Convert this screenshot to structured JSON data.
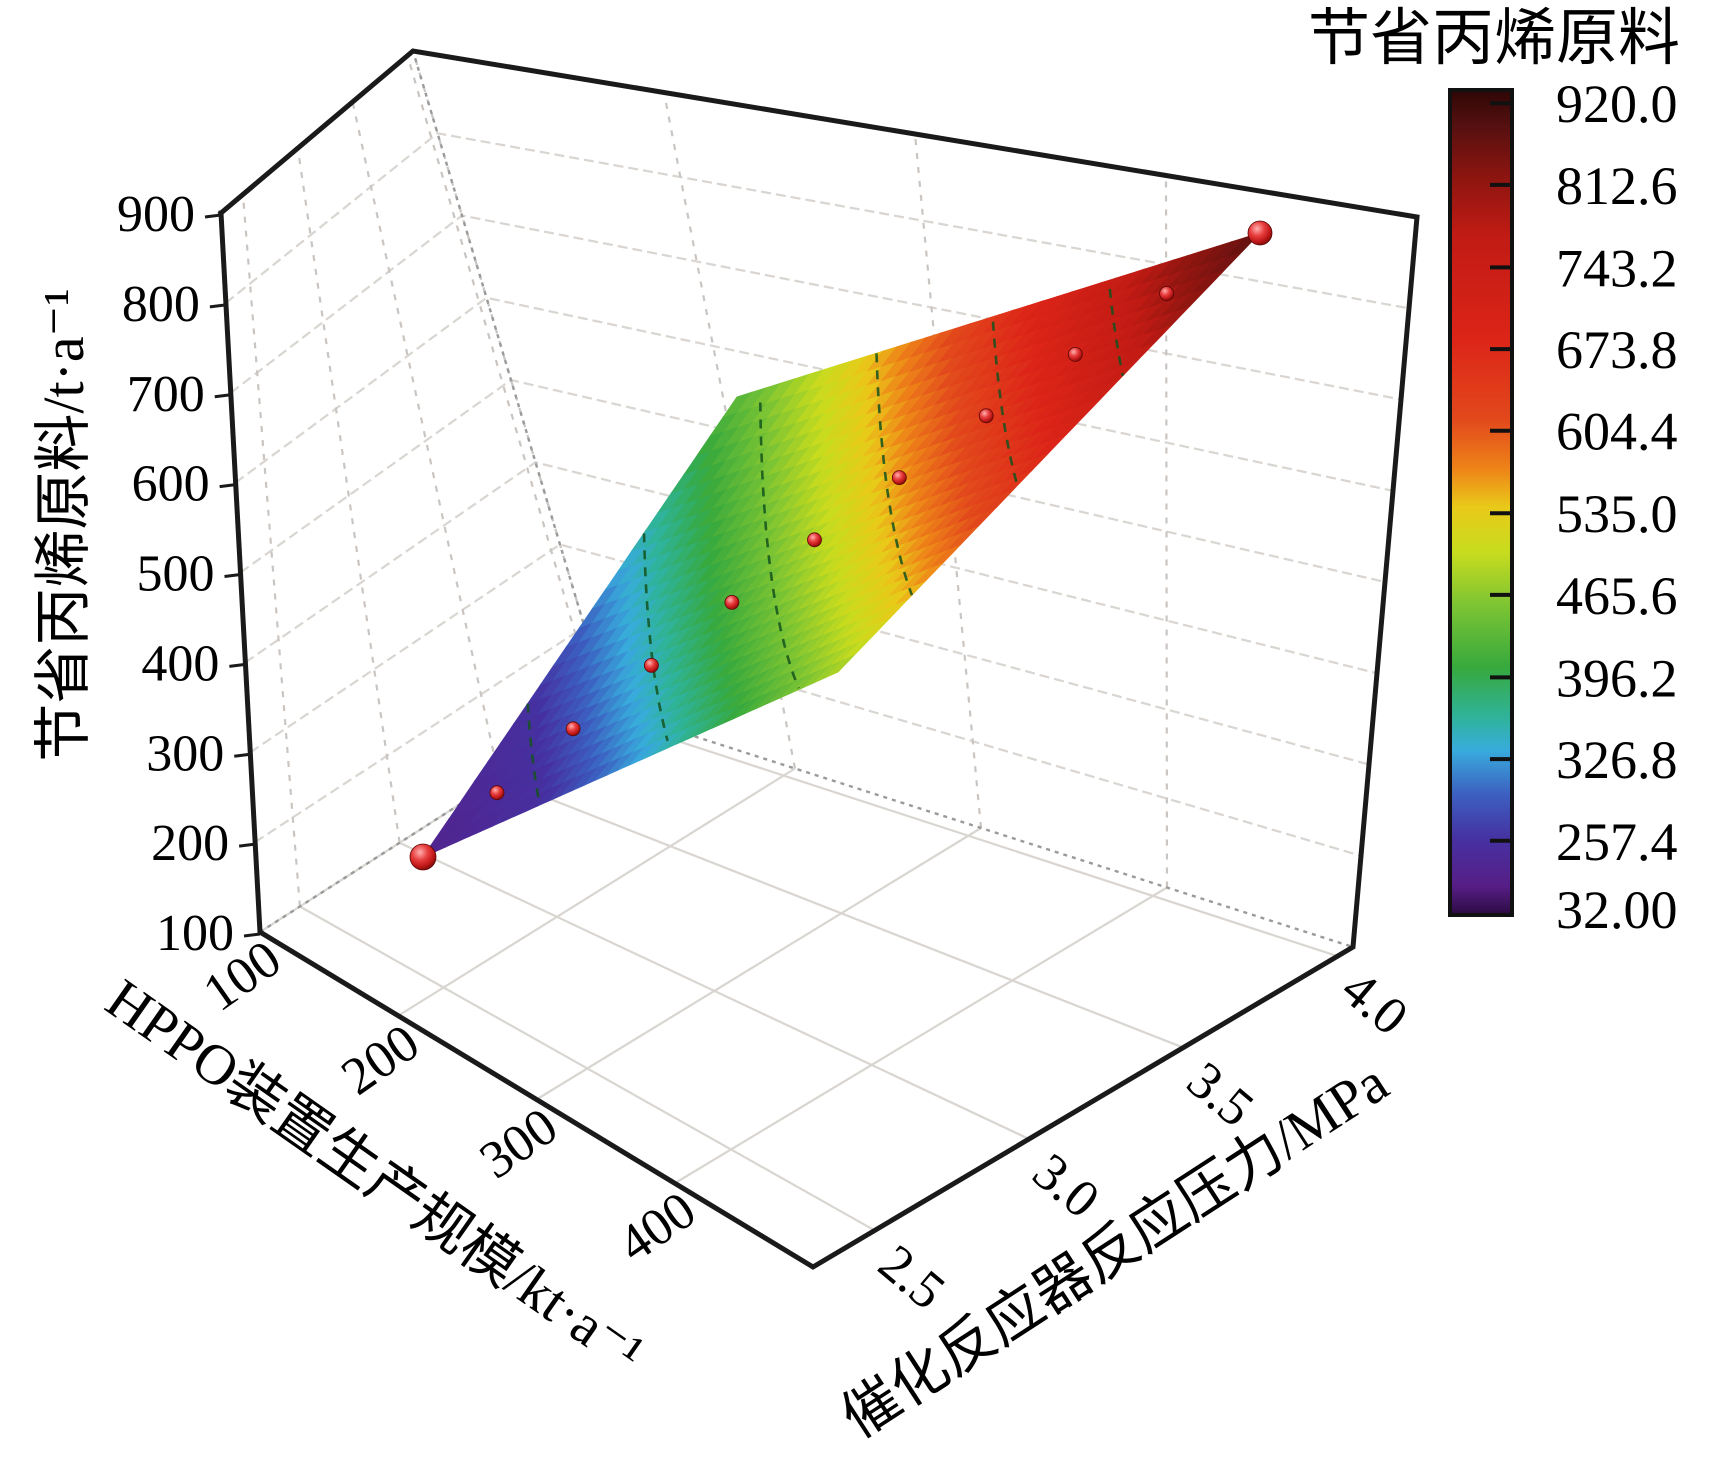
{
  "figure_type": "3d-response-surface-plot",
  "chart_data": {
    "type": "surface3d",
    "x_axis": {
      "label": "HPPO装置生产规模/kt·a⁻¹",
      "ticks": [
        100,
        200,
        300,
        400
      ],
      "range": [
        100,
        500
      ]
    },
    "y_axis": {
      "label": "催化反应器反应压力/MPa",
      "ticks": [
        "2.5",
        "3.0",
        "3.5",
        "4.0"
      ],
      "tick_values": [
        2.5,
        3.0,
        3.5,
        4.0
      ],
      "range": [
        2.3,
        4.05
      ]
    },
    "z_axis": {
      "label": "节省丙烯原料/t·a⁻¹",
      "ticks": [
        900,
        800,
        700,
        600,
        500,
        400,
        300,
        200,
        100
      ],
      "range": [
        100,
        900
      ]
    },
    "surface": {
      "x_range": [
        100,
        400
      ],
      "p_range": [
        2.5,
        4.0
      ],
      "corner_z": {
        "x100_p25": 160,
        "x400_p25": 480,
        "x100_p40": 430,
        "x400_p40": 880
      },
      "description": "bilinear response surface z rising from ~160 t/a at (100 kt/a, 2.5 MPa) to ~880 t/a at (400 kt/a, 4.0 MPa)"
    },
    "contour_levels": [
      250,
      350,
      450,
      550,
      650,
      750
    ],
    "scatter_points": [
      {
        "x": 100,
        "p": 2.5,
        "z": 160,
        "r": 13
      },
      {
        "x": 130,
        "p": 2.65,
        "z": 220,
        "r": 7
      },
      {
        "x": 160,
        "p": 2.8,
        "z": 283,
        "r": 7
      },
      {
        "x": 190,
        "p": 2.95,
        "z": 349,
        "r": 7
      },
      {
        "x": 220,
        "p": 3.1,
        "z": 417,
        "r": 7
      },
      {
        "x": 250,
        "p": 3.25,
        "z": 488,
        "r": 7
      },
      {
        "x": 280,
        "p": 3.4,
        "z": 561,
        "r": 7
      },
      {
        "x": 310,
        "p": 3.55,
        "z": 637,
        "r": 7
      },
      {
        "x": 340,
        "p": 3.7,
        "z": 715,
        "r": 7
      },
      {
        "x": 370,
        "p": 3.85,
        "z": 796,
        "r": 7
      },
      {
        "x": 400,
        "p": 4.0,
        "z": 880,
        "r": 12
      }
    ],
    "colorbar": {
      "title": "节省丙烯原料",
      "tick_labels": [
        "920.0",
        "812.6",
        "743.2",
        "673.8",
        "604.4",
        "535.0",
        "465.6",
        "396.2",
        "326.8",
        "257.4",
        "32.00"
      ],
      "tick_values": [
        920.0,
        812.6,
        743.2,
        673.8,
        604.4,
        535.0,
        465.6,
        396.2,
        326.8,
        257.4,
        32.0
      ],
      "tick_fracs_from_top": [
        0.016,
        0.115,
        0.215,
        0.314,
        0.413,
        0.513,
        0.612,
        0.712,
        0.811,
        0.91,
        1.0
      ]
    },
    "colormap_stops": [
      [
        0.0,
        "#2f0606"
      ],
      [
        0.045,
        "#571010"
      ],
      [
        0.105,
        "#8c1510"
      ],
      [
        0.175,
        "#c01b14"
      ],
      [
        0.3,
        "#dc2418"
      ],
      [
        0.4,
        "#e2491c"
      ],
      [
        0.46,
        "#ee8418"
      ],
      [
        0.505,
        "#e9c919"
      ],
      [
        0.56,
        "#c8dc1e"
      ],
      [
        0.625,
        "#7cc433"
      ],
      [
        0.7,
        "#37a93d"
      ],
      [
        0.76,
        "#2fb39a"
      ],
      [
        0.8,
        "#38acdc"
      ],
      [
        0.855,
        "#3c5ec0"
      ],
      [
        0.91,
        "#4630a0"
      ],
      [
        0.965,
        "#571e86"
      ],
      [
        1.0,
        "#2b0b42"
      ]
    ],
    "colors": {
      "box_edge": "#1a1a1a",
      "grid_line": "#d9d5d1",
      "grid_dash": "#cac5c1",
      "back_edge": "#9a9a9a",
      "contour_dash": "#14531e",
      "scatter_red": "#c01818",
      "text": "#000000"
    }
  },
  "titles": {
    "z_axis": "节省丙烯原料/t·a⁻¹",
    "x_axis": "HPPO装置生产规模/kt·a⁻¹",
    "y_axis": "催化反应器反应压力/MPa",
    "colorbar": "节省丙烯原料"
  }
}
